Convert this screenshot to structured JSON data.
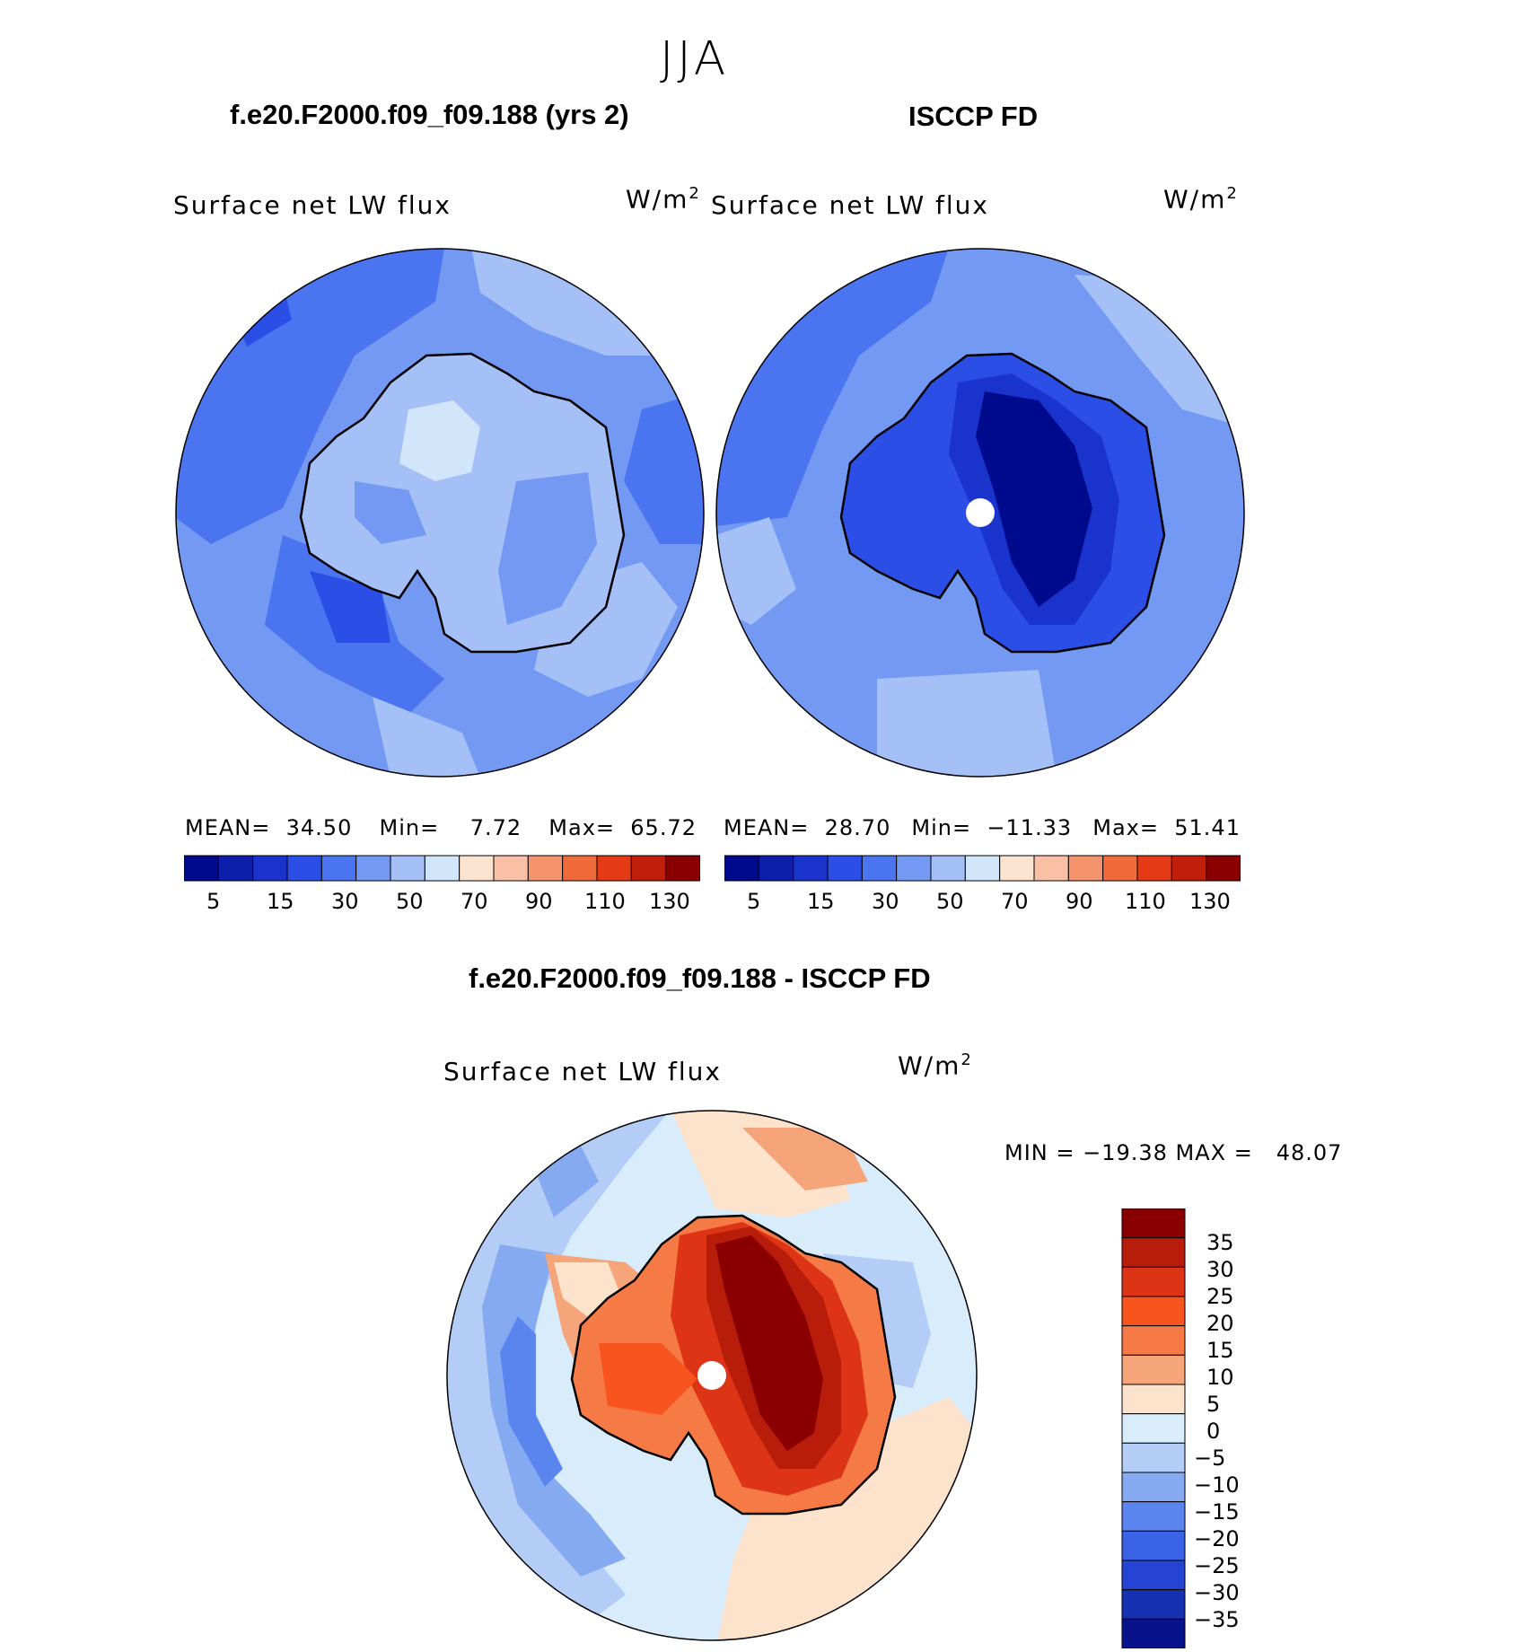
{
  "season": "JJA",
  "panels": [
    {
      "title": "f.e20.F2000.f09_f09.188 (yrs 2)",
      "variable": "Surface net LW flux",
      "units": "W/m",
      "units_exp": "2",
      "mean_label": "MEAN=",
      "mean": "34.50",
      "min_label": "Min=",
      "min": "7.72",
      "max_label": "Max=",
      "max": "65.72",
      "colorbar_ticks": [
        "5",
        "15",
        "30",
        "50",
        "70",
        "90",
        "110",
        "130"
      ]
    },
    {
      "title": "ISCCP FD",
      "variable": "Surface net LW flux",
      "units": "W/m",
      "units_exp": "2",
      "mean_label": "MEAN=",
      "mean": "28.70",
      "min_label": "Min=",
      "min": "−11.33",
      "max_label": "Max=",
      "max": "51.41",
      "colorbar_ticks": [
        "5",
        "15",
        "30",
        "50",
        "70",
        "90",
        "110",
        "130"
      ]
    }
  ],
  "diff": {
    "title": "f.e20.F2000.f09_f09.188 - ISCCP FD",
    "variable": "Surface net LW flux",
    "units": "W/m",
    "units_exp": "2",
    "minmax_text": "MIN = −19.38 MAX =   48.07",
    "colorbar_ticks": [
      "35",
      "30",
      "25",
      "20",
      "15",
      "10",
      "5",
      "0",
      "−5",
      "−10",
      "−15",
      "−20",
      "−25",
      "−30",
      "−35"
    ]
  },
  "colors": {
    "abs_scale": [
      "#000a8c",
      "#0c1eaa",
      "#1a33cc",
      "#2b4fe6",
      "#4a74f0",
      "#7399f2",
      "#a4c0f7",
      "#d2e6fb",
      "#fbe3cf",
      "#f9c0a6",
      "#f5946c",
      "#f06a3a",
      "#e43a16",
      "#c0200a",
      "#8a0000"
    ],
    "diff_scale": [
      "#8a0000",
      "#b81c0a",
      "#dc3414",
      "#f8541e",
      "#f57a46",
      "#f6a47a",
      "#fde2cc",
      "#d9ecfb",
      "#b3cdf7",
      "#86aaf2",
      "#5a84ee",
      "#3a62e6",
      "#2644d4",
      "#1530b0",
      "#08128a"
    ]
  }
}
